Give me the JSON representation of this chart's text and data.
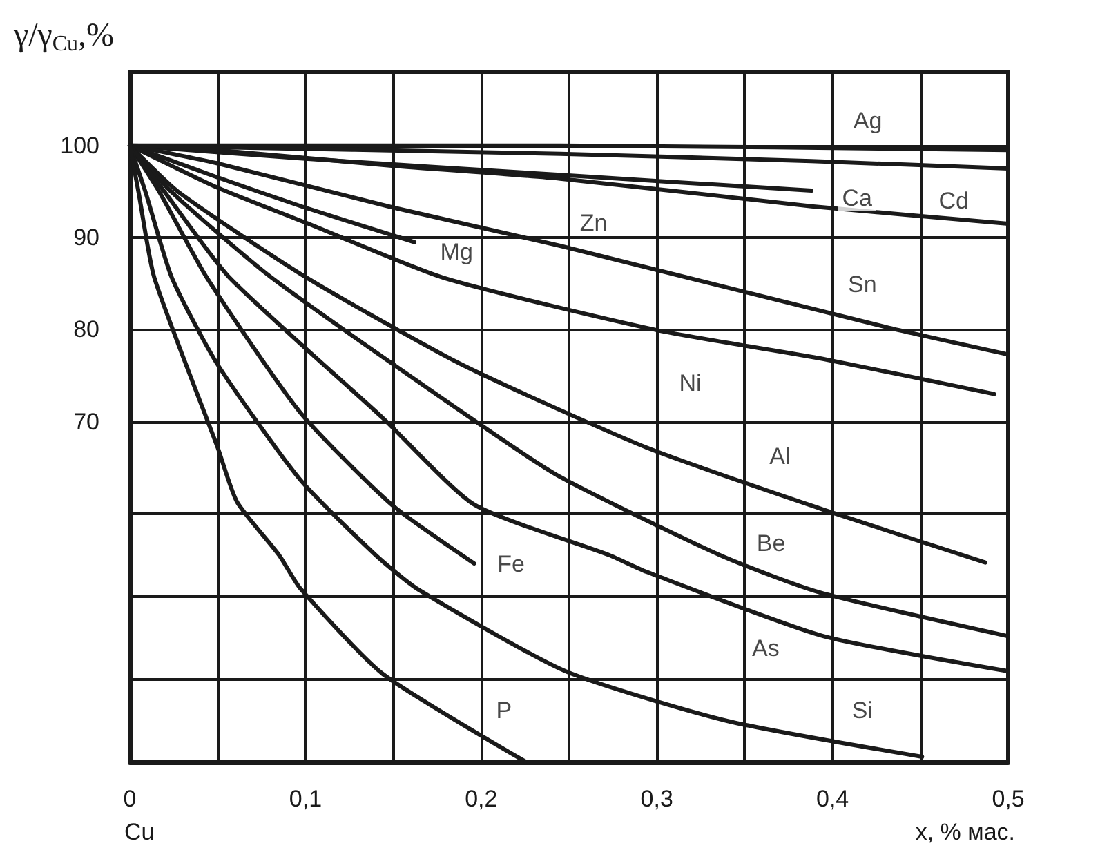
{
  "chart_data": {
    "type": "line",
    "ylabel": "γ/γ$_{Cu}$,%",
    "xlabel": "x, % мас.",
    "annotations": [
      "Cu",
      {
        "text": "Ag",
        "x": 0.42,
        "y": 102.7
      },
      {
        "text": "Ca",
        "x": 0.414,
        "y": 94.3
      },
      {
        "text": "Cd",
        "x": 0.469,
        "y": 94.0
      },
      {
        "text": "Zn",
        "x": 0.264,
        "y": 91.6
      },
      {
        "text": "Mg",
        "x": 0.186,
        "y": 88.4
      },
      {
        "text": "Sn",
        "x": 0.417,
        "y": 84.9
      },
      {
        "text": "Ni",
        "x": 0.319,
        "y": 74.2
      },
      {
        "text": "Al",
        "x": 0.37,
        "y": 66.2
      },
      {
        "text": "Be",
        "x": 0.365,
        "y": 56.8
      },
      {
        "text": "Fe",
        "x": 0.217,
        "y": 54.5
      },
      {
        "text": "As",
        "x": 0.362,
        "y": 45.4
      },
      {
        "text": "Si",
        "x": 0.417,
        "y": 38.6
      },
      {
        "text": "P",
        "x": 0.213,
        "y": 38.6
      }
    ],
    "series": [
      {
        "color": "#1a1a1a",
        "x": [
          0,
          0.245,
          0.5
        ],
        "values": [
          100,
          100.0,
          99.5
        ]
      },
      {
        "color": "#1a1a1a",
        "x": [
          0,
          0.245,
          0.388,
          0.5
        ],
        "values": [
          100,
          99.1,
          98.3,
          97.5
        ]
      },
      {
        "color": "#1a1a1a",
        "x": [
          0,
          0.097,
          0.245,
          0.388
        ],
        "values": [
          100,
          98.6,
          96.8,
          95.1
        ]
      },
      {
        "color": "#1a1a1a",
        "x": [
          0,
          0.049,
          0.149,
          0.245,
          0.388,
          0.5
        ],
        "values": [
          100,
          99.5,
          97.8,
          96.4,
          93.4,
          91.5
        ]
      },
      {
        "color": "#1a1a1a",
        "x": [
          0,
          0.049,
          0.149,
          0.245,
          0.432,
          0.5
        ],
        "values": [
          100,
          98.1,
          93.3,
          89.1,
          80.2,
          77.3
        ]
      },
      {
        "color": "#1a1a1a",
        "x": [
          0,
          0.049,
          0.099,
          0.162
        ],
        "values": [
          100,
          96.6,
          93.3,
          89.5
        ]
      },
      {
        "color": "#1a1a1a",
        "x": [
          0,
          0.049,
          0.099,
          0.179,
          0.301,
          0.395,
          0.492
        ],
        "values": [
          100,
          95.5,
          91.7,
          85.6,
          79.9,
          76.8,
          73.0
        ]
      },
      {
        "color": "#1a1a1a",
        "x": [
          0,
          0.028,
          0.101,
          0.189,
          0.294,
          0.394,
          0.487
        ],
        "values": [
          100,
          94.9,
          85.6,
          76.2,
          67.2,
          60.5,
          54.7
        ]
      },
      {
        "color": "#1a1a1a",
        "x": [
          0,
          0.024,
          0.081,
          0.194,
          0.245,
          0.336,
          0.392,
          0.5
        ],
        "values": [
          100,
          94.9,
          85.6,
          70.4,
          64.0,
          55.5,
          51.5,
          46.7
        ]
      },
      {
        "color": "#1a1a1a",
        "x": [
          0,
          0.017,
          0.044,
          0.097,
          0.149,
          0.196
        ],
        "values": [
          100,
          94.9,
          85.6,
          71.0,
          61.0,
          54.6
        ]
      },
      {
        "color": "#1a1a1a",
        "x": [
          0,
          0.02,
          0.057,
          0.144,
          0.196,
          0.273,
          0.294,
          0.395,
          0.5
        ],
        "values": [
          100,
          94.9,
          85.6,
          70.4,
          61.0,
          55.5,
          53.7,
          46.7,
          42.9
        ]
      },
      {
        "color": "#1a1a1a",
        "x": [
          0,
          0.009,
          0.024,
          0.05,
          0.097,
          0.14,
          0.164,
          0.248,
          0.34,
          0.451
        ],
        "values": [
          100,
          94.9,
          85.6,
          76.2,
          63.7,
          55.5,
          51.8,
          42.9,
          37.5,
          33.6
        ]
      },
      {
        "color": "#1a1a1a",
        "x": [
          0,
          0.005,
          0.014,
          0.05,
          0.061,
          0.085,
          0.097,
          0.144,
          0.225
        ],
        "values": [
          100,
          94.9,
          85.6,
          67.2,
          61.3,
          55.5,
          51.9,
          42.6,
          33.1
        ]
      }
    ],
    "xlim": [
      0,
      0.5
    ],
    "xticks": [
      0,
      {
        "value": 0.05,
        "label": null
      },
      {
        "value": 0.1,
        "label": "0,1"
      },
      {
        "value": 0.15,
        "label": null
      },
      {
        "value": 0.2,
        "label": "0,2"
      },
      {
        "value": 0.25,
        "label": null
      },
      {
        "value": 0.3,
        "label": "0,3"
      },
      {
        "value": 0.35,
        "label": null
      },
      {
        "value": 0.4,
        "label": "0,4"
      },
      {
        "value": 0.45,
        "label": null
      },
      {
        "value": 0.5,
        "label": "0,5"
      }
    ],
    "ylim": [
      33,
      108
    ],
    "yticks": [
      100,
      90,
      80,
      70,
      {
        "value": 60,
        "label": null
      },
      {
        "value": 51,
        "label": null
      },
      {
        "value": 42,
        "label": null
      }
    ],
    "grid": true,
    "marker": "none",
    "line_style": "solid"
  }
}
